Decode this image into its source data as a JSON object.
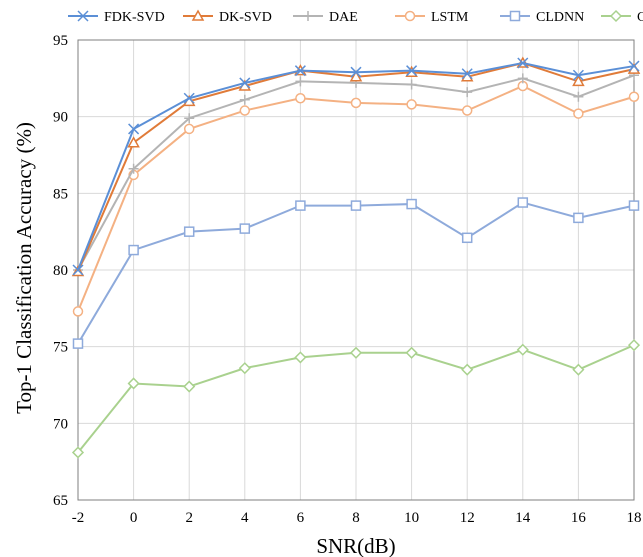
{
  "chart_data": {
    "type": "line",
    "title": "",
    "xlabel": "SNR(dB)",
    "ylabel": "Top-1 Classification Accuracy (%)",
    "x": [
      -2,
      0,
      2,
      4,
      6,
      8,
      10,
      12,
      14,
      16,
      18
    ],
    "x_ticks": [
      "-2",
      "0",
      "2",
      "4",
      "6",
      "8",
      "10",
      "12",
      "14",
      "16",
      "18"
    ],
    "ylim": [
      65,
      95
    ],
    "y_ticks": [
      "65",
      "70",
      "75",
      "80",
      "85",
      "90",
      "95"
    ],
    "grid": true,
    "legend_position": "top",
    "series": [
      {
        "name": "FDK-SVD",
        "color": "#5b8fd6",
        "marker": "x",
        "values": [
          80.0,
          89.2,
          91.2,
          92.2,
          93.0,
          92.9,
          93.0,
          92.8,
          93.5,
          92.7,
          93.3
        ]
      },
      {
        "name": "DK-SVD",
        "color": "#e07b39",
        "marker": "triangle",
        "values": [
          79.9,
          88.3,
          91.0,
          92.0,
          93.0,
          92.6,
          92.9,
          92.6,
          93.5,
          92.3,
          93.1
        ]
      },
      {
        "name": "DAE",
        "color": "#b4b4b4",
        "marker": "plus",
        "values": [
          80.0,
          86.6,
          89.9,
          91.1,
          92.3,
          92.2,
          92.1,
          91.6,
          92.5,
          91.3,
          92.7
        ]
      },
      {
        "name": "LSTM",
        "color": "#f4b183",
        "marker": "circle",
        "values": [
          77.3,
          86.2,
          89.2,
          90.4,
          91.2,
          90.9,
          90.8,
          90.4,
          92.0,
          90.2,
          91.3
        ]
      },
      {
        "name": "CLDNN",
        "color": "#8eaadb",
        "marker": "square",
        "values": [
          75.2,
          81.3,
          82.5,
          82.7,
          84.2,
          84.2,
          84.3,
          82.1,
          84.4,
          83.4,
          84.2
        ]
      },
      {
        "name": "CNN",
        "color": "#a9d18e",
        "marker": "diamond",
        "values": [
          68.1,
          72.6,
          72.4,
          73.6,
          74.3,
          74.6,
          74.6,
          73.5,
          74.8,
          73.5,
          75.1
        ]
      }
    ]
  }
}
